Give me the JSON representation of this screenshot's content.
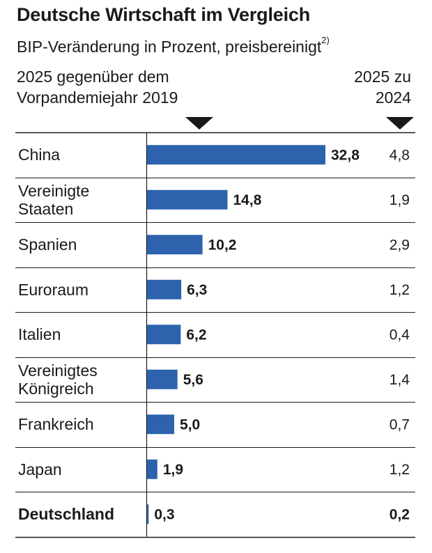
{
  "title": "Deutsche Wirtschaft im Vergleich",
  "subtitle": "BIP-Veränderung in Prozent, preisbereinigt",
  "subtitle_footnote": "2)",
  "col_left_header": "2025 gegenüber dem\nVorpandemiejahr 2019",
  "col_right_header": "2025 zu\n2024",
  "colors": {
    "bar": "#2d63ad",
    "text": "#1a1a1a",
    "line": "#1a1a1a"
  },
  "chart_data": {
    "type": "bar",
    "orientation": "horizontal",
    "categories": [
      "China",
      "Vereinigte\nStaaten",
      "Spanien",
      "Euroraum",
      "Italien",
      "Vereinigtes\nKönigreich",
      "Frankreich",
      "Japan",
      "Deutschland"
    ],
    "series": [
      {
        "values": [
          32.8,
          14.8,
          10.2,
          6.3,
          6.2,
          5.6,
          5.0,
          1.9,
          0.3
        ]
      },
      {
        "values": [
          4.8,
          1.9,
          2.9,
          1.2,
          0.4,
          1.4,
          0.7,
          1.2,
          0.2
        ]
      }
    ],
    "value_labels": [
      "32,8",
      "14,8",
      "10,2",
      "6,3",
      "6,2",
      "5,6",
      "5,0",
      "1,9",
      "0,3"
    ],
    "right_labels": [
      "4,8",
      "1,9",
      "2,9",
      "1,2",
      "0,4",
      "1,4",
      "0,7",
      "1,2",
      "0,2"
    ],
    "bold_rows": [
      "Deutschland"
    ],
    "xlim": [
      0,
      32.8
    ]
  }
}
